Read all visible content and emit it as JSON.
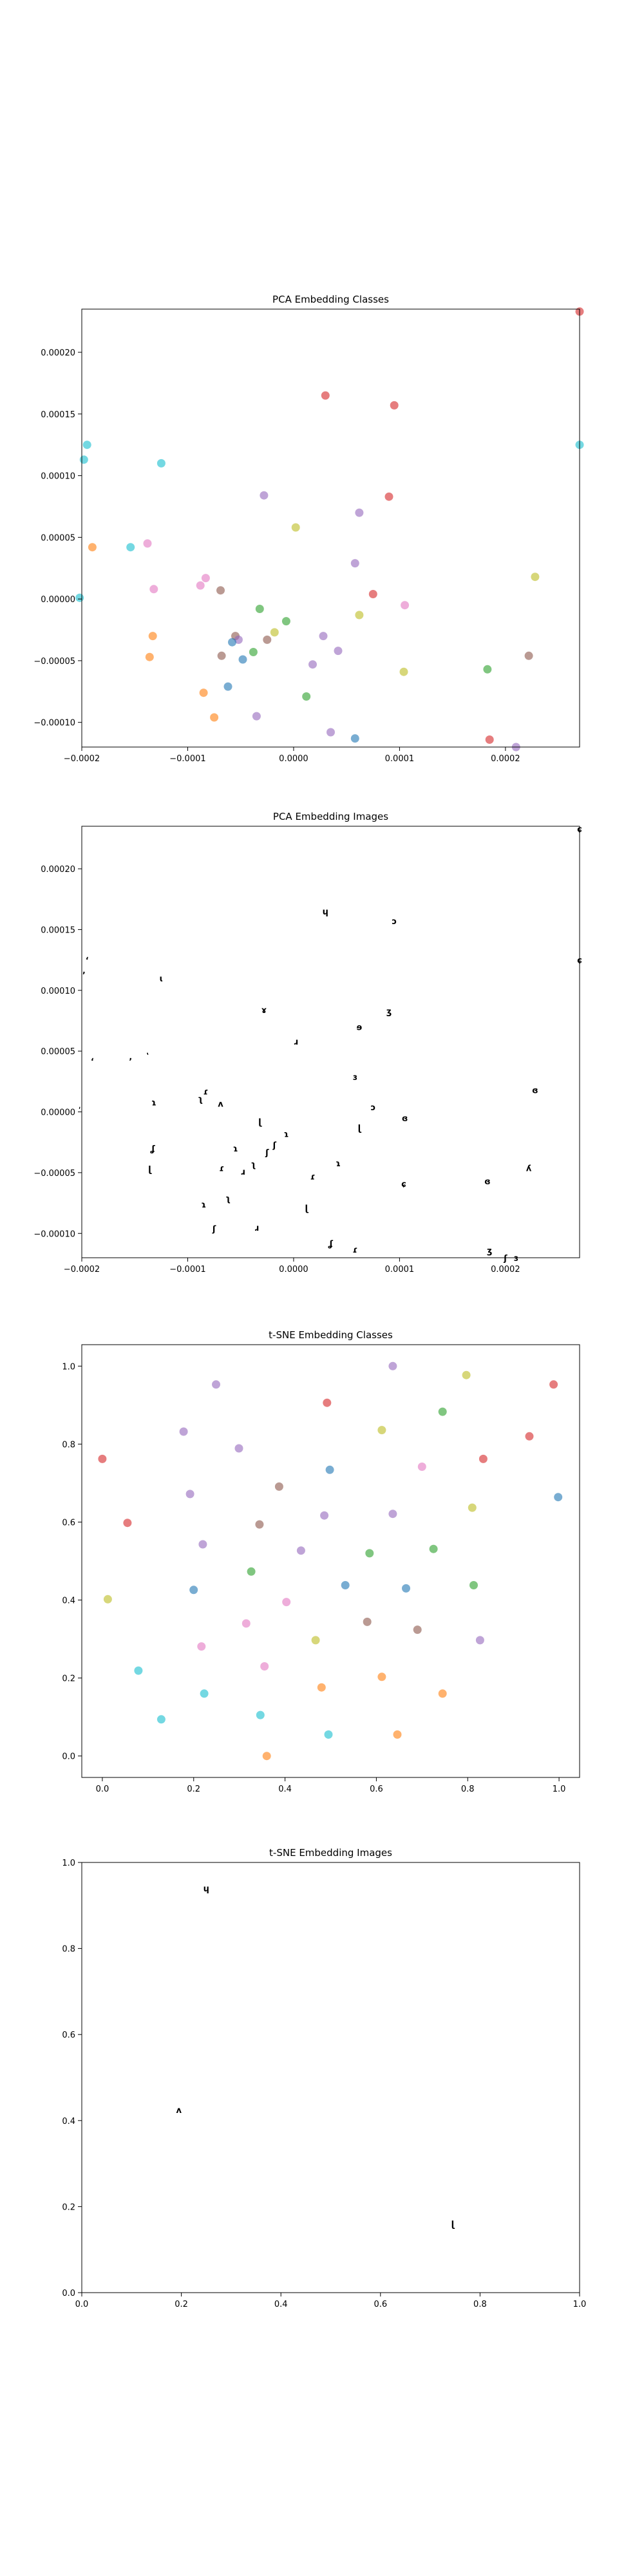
{
  "chart_data": [
    {
      "type": "scatter",
      "title": "PCA Embedding Classes",
      "xlim": [
        -0.0002,
        0.00027
      ],
      "ylim": [
        -0.00012,
        0.000235
      ],
      "xticks": [
        -0.0002,
        -0.0001,
        0.0,
        0.0001,
        0.0002
      ],
      "xtick_labels": [
        "−0.0002",
        "−0.0001",
        "0.0000",
        "0.0001",
        "0.0002"
      ],
      "yticks": [
        -0.0001,
        -5e-05,
        0.0,
        5e-05,
        0.0001,
        0.00015,
        0.0002
      ],
      "ytick_labels": [
        "−0.00010",
        "−0.00005",
        "0.00000",
        "0.00005",
        "0.00010",
        "0.00015",
        "0.00020"
      ],
      "points": [
        {
          "x": 3e-05,
          "y": 0.000165,
          "color": "#d62728"
        },
        {
          "x": 9.5e-05,
          "y": 0.000157,
          "color": "#d62728"
        },
        {
          "x": -0.000195,
          "y": 0.000125,
          "color": "#17becf"
        },
        {
          "x": -0.000198,
          "y": 0.000113,
          "color": "#17becf"
        },
        {
          "x": -0.000125,
          "y": 0.00011,
          "color": "#17becf"
        },
        {
          "x": 0.00027,
          "y": 0.000125,
          "color": "#17becf"
        },
        {
          "x": -2.8e-05,
          "y": 8.4e-05,
          "color": "#9467bd"
        },
        {
          "x": 9e-05,
          "y": 8.3e-05,
          "color": "#d62728"
        },
        {
          "x": 6.2e-05,
          "y": 7e-05,
          "color": "#9467bd"
        },
        {
          "x": 2e-06,
          "y": 5.8e-05,
          "color": "#bcbd22"
        },
        {
          "x": -0.00019,
          "y": 4.2e-05,
          "color": "#ff7f0e"
        },
        {
          "x": -0.000154,
          "y": 4.2e-05,
          "color": "#17becf"
        },
        {
          "x": -0.000138,
          "y": 4.5e-05,
          "color": "#e377c2"
        },
        {
          "x": 5.8e-05,
          "y": 2.9e-05,
          "color": "#9467bd"
        },
        {
          "x": 0.000228,
          "y": 1.8e-05,
          "color": "#bcbd22"
        },
        {
          "x": -8.3e-05,
          "y": 1.7e-05,
          "color": "#e377c2"
        },
        {
          "x": -8.8e-05,
          "y": 1.1e-05,
          "color": "#e377c2"
        },
        {
          "x": -0.000132,
          "y": 8e-06,
          "color": "#e377c2"
        },
        {
          "x": -6.9e-05,
          "y": 7e-06,
          "color": "#8c564b"
        },
        {
          "x": 7.5e-05,
          "y": 4e-06,
          "color": "#d62728"
        },
        {
          "x": -0.000202,
          "y": 1e-06,
          "color": "#17becf"
        },
        {
          "x": 0.000105,
          "y": -5e-06,
          "color": "#e377c2"
        },
        {
          "x": -3.2e-05,
          "y": -8e-06,
          "color": "#2ca02c"
        },
        {
          "x": 6.2e-05,
          "y": -1.3e-05,
          "color": "#bcbd22"
        },
        {
          "x": -7e-06,
          "y": -1.8e-05,
          "color": "#2ca02c"
        },
        {
          "x": -1.8e-05,
          "y": -2.7e-05,
          "color": "#bcbd22"
        },
        {
          "x": -0.000133,
          "y": -3e-05,
          "color": "#ff7f0e"
        },
        {
          "x": -5.5e-05,
          "y": -3e-05,
          "color": "#8c564b"
        },
        {
          "x": -5.2e-05,
          "y": -3.3e-05,
          "color": "#9467bd"
        },
        {
          "x": -5.8e-05,
          "y": -3.5e-05,
          "color": "#1f77b4"
        },
        {
          "x": 2.8e-05,
          "y": -3e-05,
          "color": "#9467bd"
        },
        {
          "x": -2.5e-05,
          "y": -3.3e-05,
          "color": "#8c564b"
        },
        {
          "x": -3.8e-05,
          "y": -4.3e-05,
          "color": "#2ca02c"
        },
        {
          "x": 4.2e-05,
          "y": -4.2e-05,
          "color": "#9467bd"
        },
        {
          "x": -0.000136,
          "y": -4.7e-05,
          "color": "#ff7f0e"
        },
        {
          "x": -6.8e-05,
          "y": -4.6e-05,
          "color": "#8c564b"
        },
        {
          "x": -4.8e-05,
          "y": -4.9e-05,
          "color": "#1f77b4"
        },
        {
          "x": 0.000222,
          "y": -4.6e-05,
          "color": "#8c564b"
        },
        {
          "x": 1.8e-05,
          "y": -5.3e-05,
          "color": "#9467bd"
        },
        {
          "x": 0.000183,
          "y": -5.7e-05,
          "color": "#2ca02c"
        },
        {
          "x": 0.000104,
          "y": -5.9e-05,
          "color": "#bcbd22"
        },
        {
          "x": -6.2e-05,
          "y": -7.1e-05,
          "color": "#1f77b4"
        },
        {
          "x": -8.5e-05,
          "y": -7.6e-05,
          "color": "#ff7f0e"
        },
        {
          "x": 1.2e-05,
          "y": -7.9e-05,
          "color": "#2ca02c"
        },
        {
          "x": -7.5e-05,
          "y": -9.6e-05,
          "color": "#ff7f0e"
        },
        {
          "x": -3.5e-05,
          "y": -9.5e-05,
          "color": "#9467bd"
        },
        {
          "x": 3.5e-05,
          "y": -0.000108,
          "color": "#9467bd"
        },
        {
          "x": 5.8e-05,
          "y": -0.000113,
          "color": "#1f77b4"
        },
        {
          "x": 0.000185,
          "y": -0.000114,
          "color": "#d62728"
        },
        {
          "x": 0.00021,
          "y": -0.00012,
          "color": "#9467bd"
        },
        {
          "x": 0.00027,
          "y": 0.000233,
          "color": "#d62728"
        }
      ]
    },
    {
      "type": "scatter",
      "title": "PCA Embedding Images",
      "xlim": [
        -0.0002,
        0.00027
      ],
      "ylim": [
        -0.00012,
        0.000235
      ],
      "xticks": [
        -0.0002,
        -0.0001,
        0.0,
        0.0001,
        0.0002
      ],
      "xtick_labels": [
        "−0.0002",
        "−0.0001",
        "0.0000",
        "0.0001",
        "0.0002"
      ],
      "yticks": [
        -0.0001,
        -5e-05,
        0.0,
        5e-05,
        0.0001,
        0.00015,
        0.0002
      ],
      "ytick_labels": [
        "−0.00010",
        "−0.00005",
        "0.00000",
        "0.00005",
        "0.00010",
        "0.00015",
        "0.00020"
      ],
      "marker_images": [
        {
          "x": 3e-05,
          "y": 0.000165,
          "glyph": "ɥ"
        },
        {
          "x": 9.5e-05,
          "y": 0.000157,
          "glyph": "ɔ"
        },
        {
          "x": -0.000195,
          "y": 0.000125,
          "glyph": "ʻ"
        },
        {
          "x": -0.000198,
          "y": 0.000113,
          "glyph": "ʼ"
        },
        {
          "x": -0.000125,
          "y": 0.00011,
          "glyph": "ɩ"
        },
        {
          "x": 0.00027,
          "y": 0.000125,
          "glyph": "ɕ"
        },
        {
          "x": -2.8e-05,
          "y": 8.4e-05,
          "glyph": "ɤ"
        },
        {
          "x": 9e-05,
          "y": 8.3e-05,
          "glyph": "ʒ"
        },
        {
          "x": 6.2e-05,
          "y": 7e-05,
          "glyph": "ɘ"
        },
        {
          "x": 2e-06,
          "y": 5.8e-05,
          "glyph": "ɹ"
        },
        {
          "x": -0.00019,
          "y": 4.2e-05,
          "glyph": "ʻ"
        },
        {
          "x": -0.000154,
          "y": 4.2e-05,
          "glyph": "ʼ"
        },
        {
          "x": -0.000138,
          "y": 4.5e-05,
          "glyph": "ʽ"
        },
        {
          "x": 5.8e-05,
          "y": 2.9e-05,
          "glyph": "ɜ"
        },
        {
          "x": 0.000228,
          "y": 1.8e-05,
          "glyph": "ɞ"
        },
        {
          "x": -8.3e-05,
          "y": 1.7e-05,
          "glyph": "ɾ"
        },
        {
          "x": -8.8e-05,
          "y": 1.1e-05,
          "glyph": "ʅ"
        },
        {
          "x": -0.000132,
          "y": 8e-06,
          "glyph": "ɿ"
        },
        {
          "x": -6.9e-05,
          "y": 7e-06,
          "glyph": "ʌ"
        },
        {
          "x": 7.5e-05,
          "y": 4e-06,
          "glyph": "ɔ"
        },
        {
          "x": -0.000202,
          "y": 1e-06,
          "glyph": "ʹ"
        },
        {
          "x": 0.000105,
          "y": -5e-06,
          "glyph": "ɞ"
        },
        {
          "x": -3.2e-05,
          "y": -8e-06,
          "glyph": "ɭ"
        },
        {
          "x": 6.2e-05,
          "y": -1.3e-05,
          "glyph": "ɭ"
        },
        {
          "x": -7e-06,
          "y": -1.8e-05,
          "glyph": "ɿ"
        },
        {
          "x": -1.8e-05,
          "y": -2.7e-05,
          "glyph": "ʃ"
        },
        {
          "x": -0.000133,
          "y": -3e-05,
          "glyph": "ʆ"
        },
        {
          "x": -5.5e-05,
          "y": -3e-05,
          "glyph": "ɿ"
        },
        {
          "x": -2.5e-05,
          "y": -3.3e-05,
          "glyph": "ʃ"
        },
        {
          "x": -3.8e-05,
          "y": -4.3e-05,
          "glyph": "ʅ"
        },
        {
          "x": 4.2e-05,
          "y": -4.2e-05,
          "glyph": "ɿ"
        },
        {
          "x": -0.000136,
          "y": -4.7e-05,
          "glyph": "ɭ"
        },
        {
          "x": -6.8e-05,
          "y": -4.6e-05,
          "glyph": "ɾ"
        },
        {
          "x": -4.8e-05,
          "y": -4.9e-05,
          "glyph": "ɹ"
        },
        {
          "x": 0.000222,
          "y": -4.6e-05,
          "glyph": "ʎ"
        },
        {
          "x": 1.8e-05,
          "y": -5.3e-05,
          "glyph": "ɾ"
        },
        {
          "x": 0.000183,
          "y": -5.7e-05,
          "glyph": "ɞ"
        },
        {
          "x": 0.000104,
          "y": -5.9e-05,
          "glyph": "ɕ"
        },
        {
          "x": -6.2e-05,
          "y": -7.1e-05,
          "glyph": "ʅ"
        },
        {
          "x": -8.5e-05,
          "y": -7.6e-05,
          "glyph": "ɿ"
        },
        {
          "x": 1.2e-05,
          "y": -7.9e-05,
          "glyph": "ɭ"
        },
        {
          "x": -7.5e-05,
          "y": -9.6e-05,
          "glyph": "ʃ"
        },
        {
          "x": -3.5e-05,
          "y": -9.5e-05,
          "glyph": "ɹ"
        },
        {
          "x": 3.5e-05,
          "y": -0.000108,
          "glyph": "ʆ"
        },
        {
          "x": 5.8e-05,
          "y": -0.000113,
          "glyph": "ɾ"
        },
        {
          "x": 0.000185,
          "y": -0.000114,
          "glyph": "ʒ"
        },
        {
          "x": 0.00021,
          "y": -0.00012,
          "glyph": "ɜ"
        },
        {
          "x": 0.0002,
          "y": -0.00012,
          "glyph": "ʃ"
        },
        {
          "x": 0.00027,
          "y": 0.000233,
          "glyph": "ɕ"
        }
      ]
    },
    {
      "type": "scatter",
      "title": "t-SNE Embedding Classes",
      "xlim": [
        -0.045,
        1.045
      ],
      "ylim": [
        -0.055,
        1.055
      ],
      "xticks": [
        0.0,
        0.2,
        0.4,
        0.6,
        0.8,
        1.0
      ],
      "xtick_labels": [
        "0.0",
        "0.2",
        "0.4",
        "0.6",
        "0.8",
        "1.0"
      ],
      "yticks": [
        0.0,
        0.2,
        0.4,
        0.6,
        0.8,
        1.0
      ],
      "ytick_labels": [
        "0.0",
        "0.2",
        "0.4",
        "0.6",
        "0.8",
        "1.0"
      ],
      "points": [
        {
          "x": 0.636,
          "y": 1.0,
          "color": "#9467bd"
        },
        {
          "x": 0.797,
          "y": 0.977,
          "color": "#bcbd22"
        },
        {
          "x": 0.249,
          "y": 0.953,
          "color": "#9467bd"
        },
        {
          "x": 0.988,
          "y": 0.953,
          "color": "#d62728"
        },
        {
          "x": 0.492,
          "y": 0.906,
          "color": "#d62728"
        },
        {
          "x": 0.745,
          "y": 0.883,
          "color": "#2ca02c"
        },
        {
          "x": 0.178,
          "y": 0.832,
          "color": "#9467bd"
        },
        {
          "x": 0.612,
          "y": 0.836,
          "color": "#bcbd22"
        },
        {
          "x": 0.299,
          "y": 0.789,
          "color": "#9467bd"
        },
        {
          "x": 0.935,
          "y": 0.82,
          "color": "#d62728"
        },
        {
          "x": 0.0,
          "y": 0.762,
          "color": "#d62728"
        },
        {
          "x": 0.834,
          "y": 0.762,
          "color": "#d62728"
        },
        {
          "x": 0.7,
          "y": 0.742,
          "color": "#e377c2"
        },
        {
          "x": 0.498,
          "y": 0.734,
          "color": "#1f77b4"
        },
        {
          "x": 0.387,
          "y": 0.691,
          "color": "#8c564b"
        },
        {
          "x": 0.192,
          "y": 0.672,
          "color": "#9467bd"
        },
        {
          "x": 0.998,
          "y": 0.664,
          "color": "#1f77b4"
        },
        {
          "x": 0.81,
          "y": 0.637,
          "color": "#bcbd22"
        },
        {
          "x": 0.486,
          "y": 0.617,
          "color": "#9467bd"
        },
        {
          "x": 0.636,
          "y": 0.621,
          "color": "#9467bd"
        },
        {
          "x": 0.055,
          "y": 0.598,
          "color": "#d62728"
        },
        {
          "x": 0.344,
          "y": 0.594,
          "color": "#8c564b"
        },
        {
          "x": 0.22,
          "y": 0.543,
          "color": "#9467bd"
        },
        {
          "x": 0.725,
          "y": 0.531,
          "color": "#2ca02c"
        },
        {
          "x": 0.435,
          "y": 0.527,
          "color": "#9467bd"
        },
        {
          "x": 0.585,
          "y": 0.52,
          "color": "#2ca02c"
        },
        {
          "x": 0.326,
          "y": 0.473,
          "color": "#2ca02c"
        },
        {
          "x": 0.532,
          "y": 0.438,
          "color": "#1f77b4"
        },
        {
          "x": 0.813,
          "y": 0.438,
          "color": "#2ca02c"
        },
        {
          "x": 0.2,
          "y": 0.426,
          "color": "#1f77b4"
        },
        {
          "x": 0.665,
          "y": 0.43,
          "color": "#1f77b4"
        },
        {
          "x": 0.012,
          "y": 0.402,
          "color": "#bcbd22"
        },
        {
          "x": 0.403,
          "y": 0.395,
          "color": "#e377c2"
        },
        {
          "x": 0.58,
          "y": 0.344,
          "color": "#8c564b"
        },
        {
          "x": 0.315,
          "y": 0.34,
          "color": "#e377c2"
        },
        {
          "x": 0.69,
          "y": 0.324,
          "color": "#8c564b"
        },
        {
          "x": 0.467,
          "y": 0.297,
          "color": "#bcbd22"
        },
        {
          "x": 0.827,
          "y": 0.297,
          "color": "#9467bd"
        },
        {
          "x": 0.217,
          "y": 0.281,
          "color": "#e377c2"
        },
        {
          "x": 0.355,
          "y": 0.23,
          "color": "#e377c2"
        },
        {
          "x": 0.079,
          "y": 0.219,
          "color": "#17becf"
        },
        {
          "x": 0.612,
          "y": 0.203,
          "color": "#ff7f0e"
        },
        {
          "x": 0.48,
          "y": 0.176,
          "color": "#ff7f0e"
        },
        {
          "x": 0.223,
          "y": 0.16,
          "color": "#17becf"
        },
        {
          "x": 0.745,
          "y": 0.16,
          "color": "#ff7f0e"
        },
        {
          "x": 0.346,
          "y": 0.105,
          "color": "#17becf"
        },
        {
          "x": 0.129,
          "y": 0.094,
          "color": "#17becf"
        },
        {
          "x": 0.495,
          "y": 0.055,
          "color": "#17becf"
        },
        {
          "x": 0.646,
          "y": 0.055,
          "color": "#ff7f0e"
        },
        {
          "x": 0.36,
          "y": 0.0,
          "color": "#ff7f0e"
        }
      ]
    },
    {
      "type": "scatter",
      "title": "t-SNE Embedding Images",
      "xlim": [
        0.0,
        1.0
      ],
      "ylim": [
        0.0,
        1.0
      ],
      "xticks": [
        0.0,
        0.2,
        0.4,
        0.6,
        0.8,
        1.0
      ],
      "xtick_labels": [
        "0.0",
        "0.2",
        "0.4",
        "0.6",
        "0.8",
        "1.0"
      ],
      "yticks": [
        0.0,
        0.2,
        0.4,
        0.6,
        0.8,
        1.0
      ],
      "ytick_labels": [
        "0.0",
        "0.2",
        "0.4",
        "0.6",
        "0.8",
        "1.0"
      ],
      "marker_images": [
        {
          "x": 0.25,
          "y": 0.94,
          "glyph": "ɥ"
        },
        {
          "x": 0.195,
          "y": 0.425,
          "glyph": "ʌ"
        },
        {
          "x": 0.745,
          "y": 0.16,
          "glyph": "ɭ"
        }
      ]
    }
  ]
}
